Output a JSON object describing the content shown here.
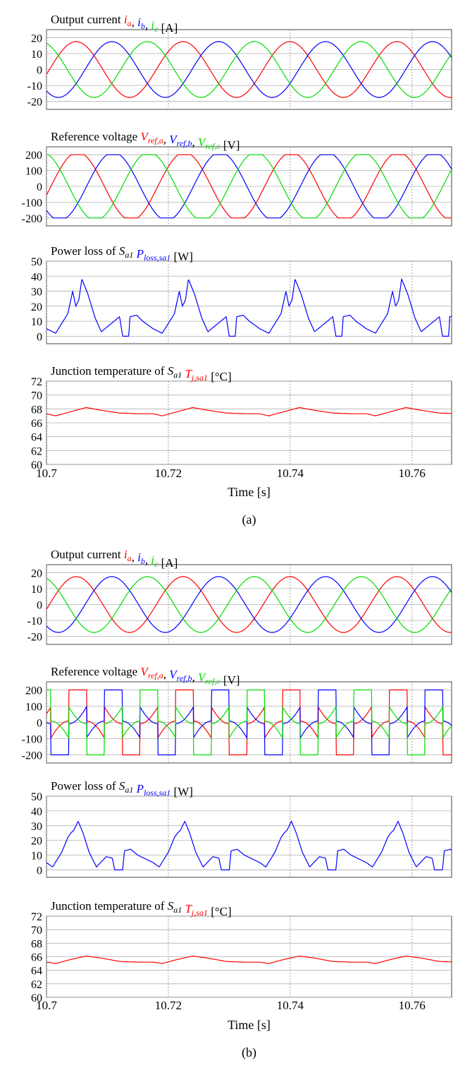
{
  "colors": {
    "red": "#ff0000",
    "blue": "#0000ff",
    "green": "#00dd00",
    "grid": "#b0b0b0",
    "axis": "#555555"
  },
  "x_axis": {
    "label": "Time [s]",
    "ticks": [
      10.7,
      10.72,
      10.74,
      10.76
    ],
    "tick_labels": [
      "10.7",
      "10.72",
      "10.74",
      "10.76"
    ],
    "xlim": [
      10.7,
      10.7665
    ]
  },
  "figures": [
    {
      "caption": "(a)",
      "chart_data": [
        {
          "type": "line",
          "title_parts": [
            {
              "text": "Output current ",
              "color": "black",
              "italic": false
            },
            {
              "text": "i",
              "sub": "a",
              "color": "red",
              "italic": true
            },
            {
              "text": ", ",
              "color": "black",
              "italic": false
            },
            {
              "text": "i",
              "sub": "b",
              "color": "blue",
              "italic": true
            },
            {
              "text": ", ",
              "color": "black",
              "italic": false
            },
            {
              "text": "i",
              "sub": "c",
              "color": "green",
              "italic": true
            },
            {
              "text": " [A]",
              "color": "black",
              "italic": false
            }
          ],
          "ylim": [
            -25,
            25
          ],
          "yticks": [
            -20,
            -10,
            0,
            10,
            20
          ],
          "grid": true,
          "series": [
            {
              "name": "i_a",
              "color": "red",
              "kind": "sine",
              "amplitude": 17.5,
              "frequency_hz": 57,
              "phase_deg": -10
            },
            {
              "name": "i_b",
              "color": "blue",
              "kind": "sine",
              "amplitude": 17.5,
              "frequency_hz": 57,
              "phase_deg": -130
            },
            {
              "name": "i_c",
              "color": "green",
              "kind": "sine",
              "amplitude": 17.5,
              "frequency_hz": 57,
              "phase_deg": 110
            }
          ]
        },
        {
          "type": "line",
          "title_parts": [
            {
              "text": "Reference voltage ",
              "color": "black",
              "italic": false
            },
            {
              "text": "V",
              "sub": "ref,a",
              "color": "red",
              "italic": true
            },
            {
              "text": ", ",
              "color": "black",
              "italic": false
            },
            {
              "text": "V",
              "sub": "ref,b",
              "color": "blue",
              "italic": true
            },
            {
              "text": ", ",
              "color": "black",
              "italic": false
            },
            {
              "text": "V",
              "sub": "ref,c",
              "color": "green",
              "italic": true
            },
            {
              "text": " [V]",
              "color": "black",
              "italic": false
            }
          ],
          "ylim": [
            -250,
            250
          ],
          "yticks": [
            -200,
            -100,
            0,
            100,
            200
          ],
          "grid": true,
          "series": [
            {
              "name": "V_ref,a",
              "color": "red",
              "kind": "clamped_sine",
              "amplitude": 215,
              "limit": 200,
              "frequency_hz": 57,
              "phase_deg": -15
            },
            {
              "name": "V_ref,b",
              "color": "blue",
              "kind": "clamped_sine",
              "amplitude": 215,
              "limit": 200,
              "frequency_hz": 57,
              "phase_deg": -135
            },
            {
              "name": "V_ref,c",
              "color": "green",
              "kind": "clamped_sine",
              "amplitude": 215,
              "limit": 200,
              "frequency_hz": 57,
              "phase_deg": 105
            }
          ]
        },
        {
          "type": "line",
          "title_parts": [
            {
              "text": "Power loss of ",
              "color": "black",
              "italic": false
            },
            {
              "text": "S",
              "sub": "a1",
              "color": "black",
              "italic": true
            },
            {
              "text": " ",
              "color": "black",
              "italic": false
            },
            {
              "text": "P",
              "sub": "loss,sa1",
              "color": "blue",
              "italic": true
            },
            {
              "text": " [W]",
              "color": "black",
              "italic": false
            }
          ],
          "ylim": [
            -5,
            50
          ],
          "yticks": [
            0,
            10,
            20,
            30,
            40,
            50
          ],
          "grid": true,
          "series": [
            {
              "name": "P_loss,sa1",
              "color": "blue",
              "kind": "polyline",
              "period": 0.0175,
              "points": [
                [
                  10.7,
                  5
                ],
                [
                  10.7015,
                  2
                ],
                [
                  10.7035,
                  15
                ],
                [
                  10.7043,
                  30
                ],
                [
                  10.7048,
                  20
                ],
                [
                  10.7053,
                  24
                ],
                [
                  10.7058,
                  38
                ],
                [
                  10.7068,
                  28
                ],
                [
                  10.708,
                  12
                ],
                [
                  10.709,
                  3
                ],
                [
                  10.7105,
                  8
                ],
                [
                  10.712,
                  13
                ],
                [
                  10.7125,
                  0
                ],
                [
                  10.7135,
                  0
                ],
                [
                  10.7137,
                  13
                ],
                [
                  10.7148,
                  14
                ],
                [
                  10.7158,
                  10
                ],
                [
                  10.7175,
                  5
                ]
              ]
            }
          ]
        },
        {
          "type": "line",
          "title_parts": [
            {
              "text": "Junction temperature of ",
              "color": "black",
              "italic": false
            },
            {
              "text": "S",
              "sub": "a1",
              "color": "black",
              "italic": true
            },
            {
              "text": " ",
              "color": "black",
              "italic": false
            },
            {
              "text": "T",
              "sub": "j,sa1",
              "color": "red",
              "italic": true
            },
            {
              "text": " [°C]",
              "color": "black",
              "italic": false
            }
          ],
          "ylim": [
            60,
            72
          ],
          "yticks": [
            60,
            62,
            64,
            66,
            68,
            70,
            72
          ],
          "grid": true,
          "series": [
            {
              "name": "T_j,sa1",
              "color": "red",
              "kind": "polyline",
              "period": 0.0175,
              "points": [
                [
                  10.7,
                  67.3
                ],
                [
                  10.7015,
                  67.0
                ],
                [
                  10.704,
                  67.6
                ],
                [
                  10.7065,
                  68.2
                ],
                [
                  10.709,
                  67.8
                ],
                [
                  10.712,
                  67.4
                ],
                [
                  10.715,
                  67.3
                ],
                [
                  10.7175,
                  67.3
                ]
              ]
            }
          ]
        }
      ]
    },
    {
      "caption": "(b)",
      "chart_data": [
        {
          "type": "line",
          "title_parts": [
            {
              "text": "Output current ",
              "color": "black",
              "italic": false
            },
            {
              "text": "i",
              "sub": "a",
              "color": "red",
              "italic": true
            },
            {
              "text": ", ",
              "color": "black",
              "italic": false
            },
            {
              "text": "i",
              "sub": "b",
              "color": "blue",
              "italic": true
            },
            {
              "text": ", ",
              "color": "black",
              "italic": false
            },
            {
              "text": "i",
              "sub": "c",
              "color": "green",
              "italic": true
            },
            {
              "text": " [A]",
              "color": "black",
              "italic": false
            }
          ],
          "ylim": [
            -25,
            25
          ],
          "yticks": [
            -20,
            -10,
            0,
            10,
            20
          ],
          "grid": true,
          "series": [
            {
              "name": "i_a",
              "color": "red",
              "kind": "sine",
              "amplitude": 17.5,
              "frequency_hz": 57,
              "phase_deg": -10
            },
            {
              "name": "i_b",
              "color": "blue",
              "kind": "sine",
              "amplitude": 17.5,
              "frequency_hz": 57,
              "phase_deg": -130
            },
            {
              "name": "i_c",
              "color": "green",
              "kind": "sine",
              "amplitude": 17.5,
              "frequency_hz": 57,
              "phase_deg": 110
            }
          ]
        },
        {
          "type": "line",
          "title_parts": [
            {
              "text": "Reference voltage ",
              "color": "black",
              "italic": false
            },
            {
              "text": "V",
              "sub": "ref,a",
              "color": "red",
              "italic": true
            },
            {
              "text": ", ",
              "color": "black",
              "italic": false
            },
            {
              "text": "V",
              "sub": "ref,b",
              "color": "blue",
              "italic": true
            },
            {
              "text": ", ",
              "color": "black",
              "italic": false
            },
            {
              "text": "V",
              "sub": "ref,c",
              "color": "green",
              "italic": true
            },
            {
              "text": " [V]",
              "color": "black",
              "italic": false
            }
          ],
          "ylim": [
            -250,
            250
          ],
          "yticks": [
            -200,
            -100,
            0,
            100,
            200
          ],
          "grid": true,
          "series": [
            {
              "name": "V_ref,a",
              "color": "red",
              "kind": "dpwm",
              "amplitude": 120,
              "limit": 200,
              "frequency_hz": 57,
              "phase_deg": -15
            },
            {
              "name": "V_ref,b",
              "color": "blue",
              "kind": "dpwm",
              "amplitude": 120,
              "limit": 200,
              "frequency_hz": 57,
              "phase_deg": -135
            },
            {
              "name": "V_ref,c",
              "color": "green",
              "kind": "dpwm",
              "amplitude": 120,
              "limit": 200,
              "frequency_hz": 57,
              "phase_deg": 105
            }
          ]
        },
        {
          "type": "line",
          "title_parts": [
            {
              "text": "Power loss of ",
              "color": "black",
              "italic": false
            },
            {
              "text": "S",
              "sub": "a1",
              "color": "black",
              "italic": true
            },
            {
              "text": " ",
              "color": "black",
              "italic": false
            },
            {
              "text": "P",
              "sub": "loss,sa1",
              "color": "blue",
              "italic": true
            },
            {
              "text": " [W]",
              "color": "black",
              "italic": false
            }
          ],
          "ylim": [
            -5,
            50
          ],
          "yticks": [
            0,
            10,
            20,
            30,
            40,
            50
          ],
          "grid": true,
          "series": [
            {
              "name": "P_loss,sa1",
              "color": "blue",
              "kind": "polyline",
              "period": 0.0175,
              "points": [
                [
                  10.7,
                  5
                ],
                [
                  10.701,
                  2
                ],
                [
                  10.7025,
                  12
                ],
                [
                  10.7035,
                  22
                ],
                [
                  10.704,
                  25
                ],
                [
                  10.7045,
                  27
                ],
                [
                  10.7052,
                  33
                ],
                [
                  10.706,
                  25
                ],
                [
                  10.707,
                  12
                ],
                [
                  10.7082,
                  2
                ],
                [
                  10.7098,
                  9
                ],
                [
                  10.7108,
                  8
                ],
                [
                  10.7112,
                  0
                ],
                [
                  10.7125,
                  0
                ],
                [
                  10.7128,
                  13
                ],
                [
                  10.7138,
                  14
                ],
                [
                  10.715,
                  10
                ],
                [
                  10.7175,
                  5
                ]
              ]
            }
          ]
        },
        {
          "type": "line",
          "title_parts": [
            {
              "text": "Junction temperature of ",
              "color": "black",
              "italic": false
            },
            {
              "text": "S",
              "sub": "a1",
              "color": "black",
              "italic": true
            },
            {
              "text": " ",
              "color": "black",
              "italic": false
            },
            {
              "text": "T",
              "sub": "j,sa1",
              "color": "red",
              "italic": true
            },
            {
              "text": " [°C]",
              "color": "black",
              "italic": false
            }
          ],
          "ylim": [
            60,
            72
          ],
          "yticks": [
            60,
            62,
            64,
            66,
            68,
            70,
            72
          ],
          "grid": true,
          "series": [
            {
              "name": "T_j,sa1",
              "color": "red",
              "kind": "polyline",
              "period": 0.0175,
              "points": [
                [
                  10.7,
                  65.2
                ],
                [
                  10.7015,
                  65.0
                ],
                [
                  10.704,
                  65.6
                ],
                [
                  10.7065,
                  66.1
                ],
                [
                  10.709,
                  65.8
                ],
                [
                  10.712,
                  65.3
                ],
                [
                  10.715,
                  65.2
                ],
                [
                  10.7175,
                  65.2
                ]
              ]
            }
          ]
        }
      ]
    }
  ]
}
